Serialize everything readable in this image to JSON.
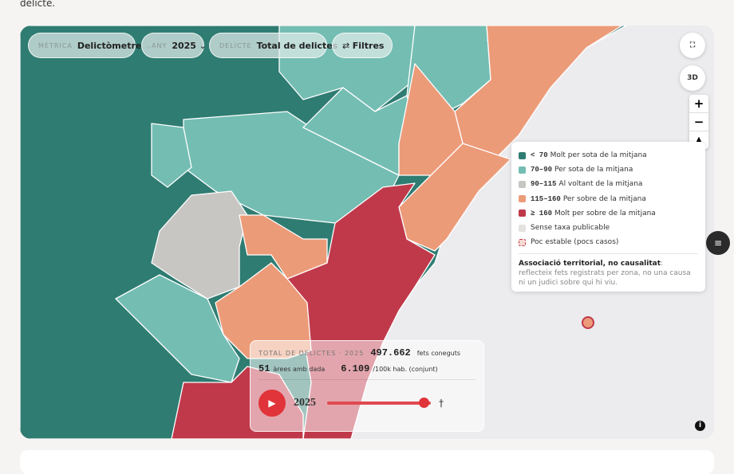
{
  "header": {
    "text": "delicte."
  },
  "controls": [
    {
      "label": "MÈTRICA",
      "value": "Delictòmetre"
    },
    {
      "label": "ANY",
      "value": "2025"
    },
    {
      "label": "DELICTE",
      "value": "Total de delictes"
    },
    {
      "value": "Filtres"
    }
  ],
  "map_buttons": {
    "view3d": "3D",
    "zoom_in": "+",
    "zoom_out": "−"
  },
  "legend": {
    "items": [
      {
        "range": "< 70",
        "text": "Molt per sota de la mitjana",
        "color": "#2f7c72"
      },
      {
        "range": "70–90",
        "text": "Per sota de la mitjana",
        "color": "#74bdb3"
      },
      {
        "range": "90–115",
        "text": "Al voltant de la mitjana",
        "color": "#c8c6c3"
      },
      {
        "range": "115–160",
        "text": "Per sobre de la mitjana",
        "color": "#ec9b79"
      },
      {
        "range": "≥ 160",
        "text": "Molt per sobre de la mitjana",
        "color": "#c0394b"
      },
      {
        "text": "Sense taxa publicable",
        "color": "#e4e2df"
      },
      {
        "text": "Poc estable (pocs casos)",
        "color": "#f6d9d3"
      }
    ],
    "note": {
      "title": "Associació territorial, no causalitat",
      "text": ": reflecteix fets registrats per zona, no una causa ni un judici sobre qui hi viu."
    }
  },
  "summary": {
    "label": "TOTAL DE DELICTES · 2025",
    "total": "497.662",
    "total_unit": "fets coneguts",
    "areas": "51",
    "areas_unit": "àrees amb dada",
    "rate": "6.109",
    "rate_unit": "/100k hab. (conjunt)"
  },
  "player": {
    "year": "2025",
    "symbol": "†"
  }
}
